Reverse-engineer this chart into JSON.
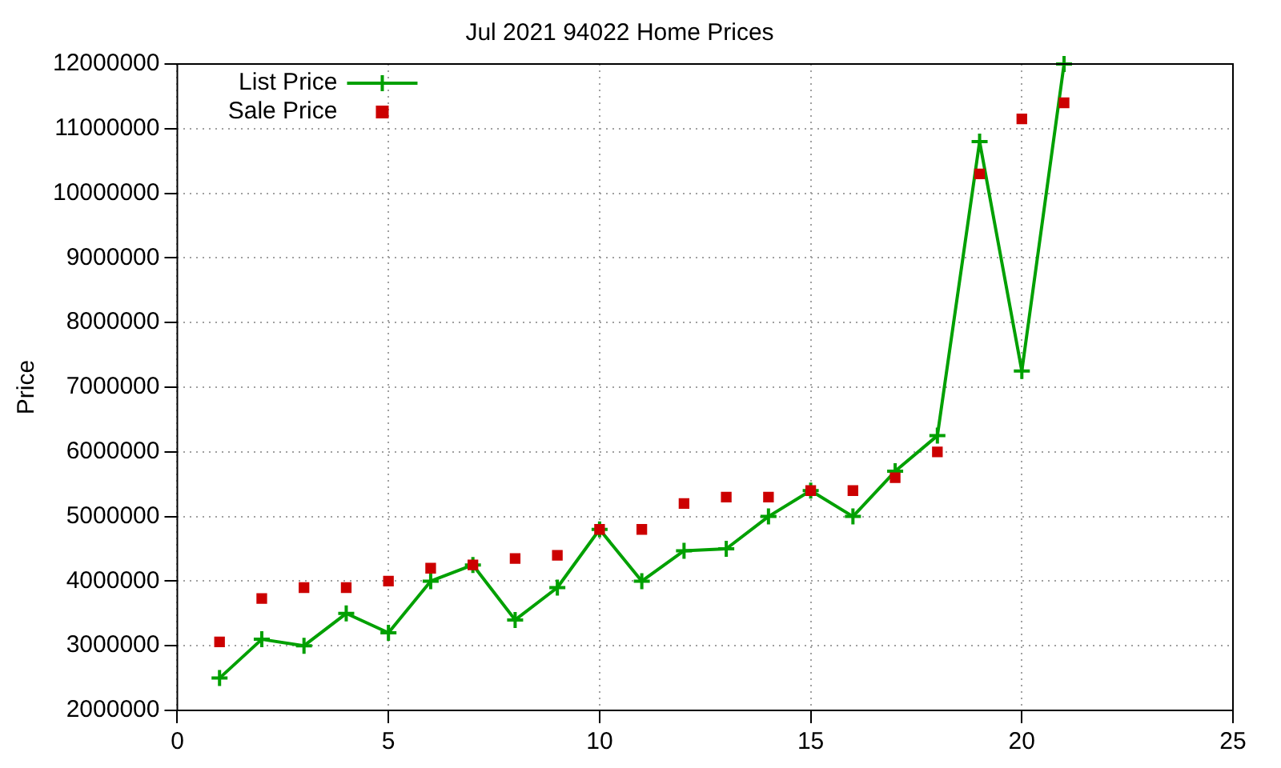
{
  "chart_data": {
    "type": "line",
    "title": "Jul 2021 94022 Home Prices",
    "ylabel": "Price",
    "x": [
      1,
      2,
      3,
      4,
      5,
      6,
      7,
      8,
      9,
      10,
      11,
      12,
      13,
      14,
      15,
      16,
      17,
      18,
      19,
      20,
      21
    ],
    "series": [
      {
        "name": "List Price",
        "type": "line",
        "marker": "cross",
        "color": "#00a000",
        "values": [
          2500000,
          3100000,
          3000000,
          3500000,
          3200000,
          4000000,
          4250000,
          3400000,
          3900000,
          4800000,
          4000000,
          4470000,
          4500000,
          5000000,
          5400000,
          5000000,
          5700000,
          6250000,
          10800000,
          7250000,
          12000000
        ]
      },
      {
        "name": "Sale Price",
        "type": "scatter",
        "marker": "square",
        "color": "#cc0000",
        "values": [
          3060000,
          3730000,
          3900000,
          3900000,
          4000000,
          4200000,
          4250000,
          4350000,
          4400000,
          4800000,
          4800000,
          5200000,
          5300000,
          5300000,
          5400000,
          5400000,
          5600000,
          6000000,
          10300000,
          11150000,
          11400000
        ]
      }
    ],
    "xlim": [
      0,
      25
    ],
    "xticks": [
      0,
      5,
      10,
      15,
      20,
      25
    ],
    "ylim": [
      2000000,
      12000000
    ],
    "yticks": [
      2000000,
      3000000,
      4000000,
      5000000,
      6000000,
      7000000,
      8000000,
      9000000,
      10000000,
      11000000,
      12000000
    ],
    "grid": true,
    "legend": "top left"
  }
}
